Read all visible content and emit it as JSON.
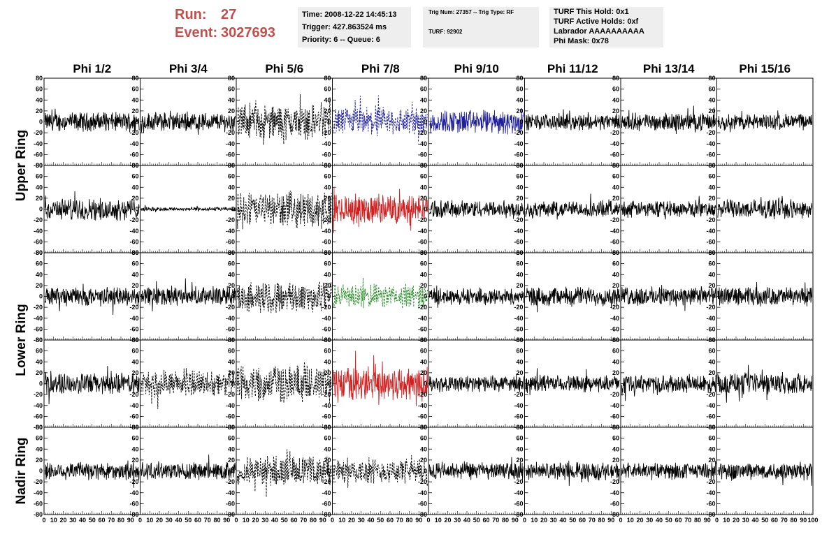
{
  "header": {
    "run_label": "Run:",
    "run_value": "27",
    "event_label": "Event:",
    "event_value": "3027693",
    "time": "Time: 2008-12-22 14:45:13",
    "trigger": "Trigger: 427.863524 ms",
    "priority": "Priority: 6 -- Queue: 6",
    "trig_num": "Trig Num: 27357 -- Trig Type: RF",
    "turf": "TURF: 92902",
    "turf_this_hold": "TURF This Hold: 0x1",
    "turf_active_holds": "TURF Active Holds: 0xf",
    "labrador": "Labrador AAAAAAAAAA",
    "phi_mask": "Phi Mask: 0x78"
  },
  "chart_data": {
    "type": "line",
    "columns": [
      "Phi 1/2",
      "Phi 3/4",
      "Phi 5/6",
      "Phi 7/8",
      "Phi 9/10",
      "Phi 11/12",
      "Phi 13/14",
      "Phi 15/16"
    ],
    "rings": [
      {
        "name": "Upper Ring",
        "rows": [
          0,
          1
        ]
      },
      {
        "name": "Lower Ring",
        "rows": [
          2,
          3
        ]
      },
      {
        "name": "Nadir Ring",
        "rows": [
          4
        ]
      }
    ],
    "ylim": [
      -80,
      80
    ],
    "yticks": [
      -80,
      -60,
      -40,
      -20,
      0,
      20,
      40,
      60,
      80
    ],
    "xlim": [
      0,
      100
    ],
    "xticks": [
      0,
      10,
      20,
      30,
      40,
      50,
      60,
      70,
      80,
      90,
      100
    ],
    "colors": {
      "black": "#000000",
      "blue": "#1f1f9c",
      "red": "#d02020",
      "green": "#228b22"
    },
    "panels": [
      [
        {
          "style": "solid",
          "color": "black",
          "amp": 14
        },
        {
          "style": "solid",
          "color": "black",
          "amp": 14
        },
        {
          "style": "dashed",
          "color": "black",
          "amp": 26
        },
        {
          "style": "dashed",
          "color": "blue",
          "amp": 22
        },
        {
          "style": "solid",
          "color": "blue",
          "amp": 18
        },
        {
          "style": "solid",
          "color": "black",
          "amp": 12
        },
        {
          "style": "solid",
          "color": "black",
          "amp": 13
        },
        {
          "style": "solid",
          "color": "black",
          "amp": 12
        }
      ],
      [
        {
          "style": "solid",
          "color": "black",
          "amp": 16
        },
        {
          "style": "flat",
          "color": "black",
          "amp": 3
        },
        {
          "style": "dashed",
          "color": "black",
          "amp": 26
        },
        {
          "style": "solid",
          "color": "red",
          "amp": 22
        },
        {
          "style": "solid",
          "color": "black",
          "amp": 13
        },
        {
          "style": "solid",
          "color": "black",
          "amp": 12
        },
        {
          "style": "solid",
          "color": "black",
          "amp": 12
        },
        {
          "style": "solid",
          "color": "black",
          "amp": 14
        }
      ],
      [
        {
          "style": "solid",
          "color": "black",
          "amp": 14
        },
        {
          "style": "solid",
          "color": "black",
          "amp": 14
        },
        {
          "style": "dashed",
          "color": "black",
          "amp": 24
        },
        {
          "style": "dashed",
          "color": "green",
          "amp": 18
        },
        {
          "style": "solid",
          "color": "black",
          "amp": 12
        },
        {
          "style": "solid",
          "color": "black",
          "amp": 14
        },
        {
          "style": "solid",
          "color": "black",
          "amp": 14
        },
        {
          "style": "solid",
          "color": "black",
          "amp": 14
        }
      ],
      [
        {
          "style": "solid",
          "color": "black",
          "amp": 16
        },
        {
          "style": "dashed",
          "color": "black",
          "amp": 20
        },
        {
          "style": "dashed",
          "color": "black",
          "amp": 28
        },
        {
          "style": "solid",
          "color": "red",
          "amp": 26
        },
        {
          "style": "solid",
          "color": "black",
          "amp": 12
        },
        {
          "style": "solid",
          "color": "black",
          "amp": 12
        },
        {
          "style": "solid",
          "color": "black",
          "amp": 13
        },
        {
          "style": "solid",
          "color": "black",
          "amp": 16
        }
      ],
      [
        {
          "style": "solid",
          "color": "black",
          "amp": 14
        },
        {
          "style": "solid",
          "color": "black",
          "amp": 13
        },
        {
          "style": "dashed",
          "color": "black",
          "amp": 22
        },
        {
          "style": "dashed",
          "color": "black",
          "amp": 18
        },
        {
          "style": "solid",
          "color": "black",
          "amp": 13
        },
        {
          "style": "solid",
          "color": "black",
          "amp": 13
        },
        {
          "style": "solid",
          "color": "black",
          "amp": 12
        },
        {
          "style": "solid",
          "color": "black",
          "amp": 13
        }
      ]
    ],
    "grid": false,
    "legend": "none"
  }
}
